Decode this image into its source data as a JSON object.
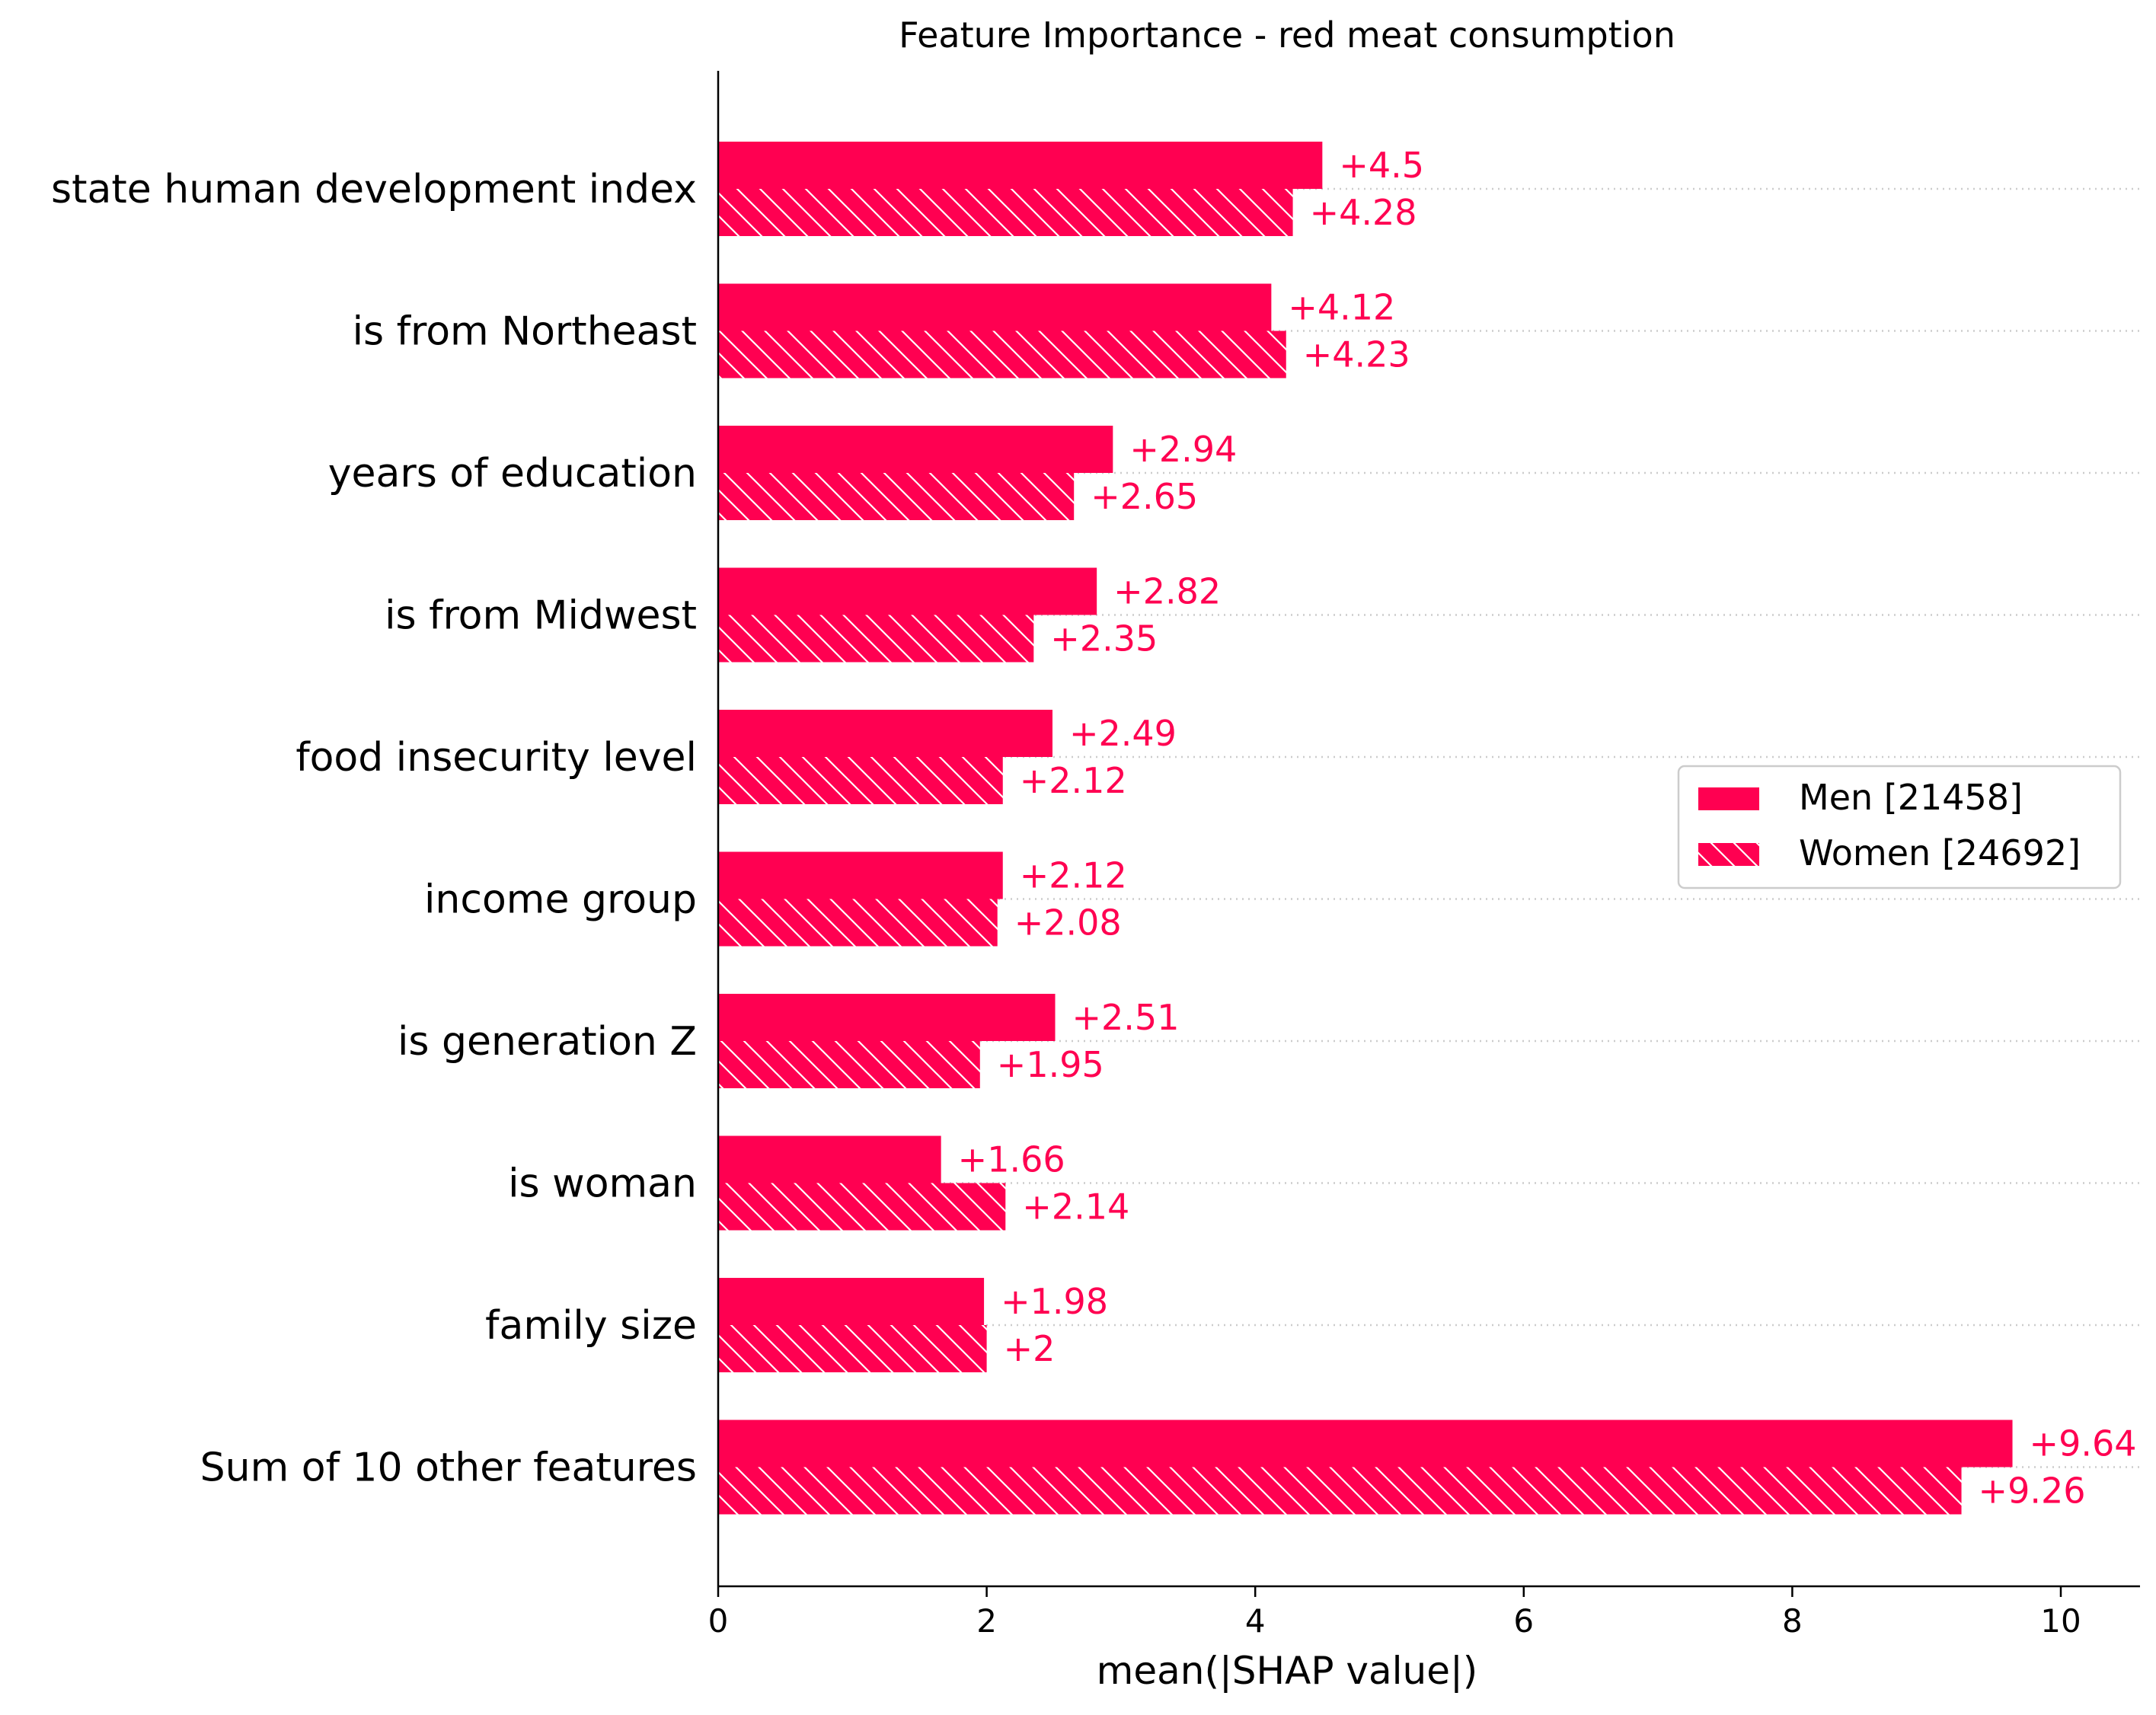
{
  "chart_data": {
    "type": "bar",
    "orientation": "horizontal",
    "title": "Feature Importance - red meat consumption",
    "xlabel": "mean(|SHAP value|)",
    "ylabel": "",
    "xlim": [
      0,
      10.6
    ],
    "xticks": [
      0,
      2,
      4,
      6,
      8,
      10
    ],
    "xtick_labels": [
      "0",
      "2",
      "4",
      "6",
      "8",
      "10"
    ],
    "grid": "dotted horizontal lines at each feature",
    "legend_position": "center-right",
    "categories": [
      "state human development index",
      "is from Northeast",
      "years of education",
      "is from Midwest",
      "food insecurity level",
      "income group",
      "is generation Z",
      "is woman",
      "family size",
      "Sum of 10 other features"
    ],
    "series": [
      {
        "name": "Men [21458]",
        "color": "#ff0051",
        "hatch": false,
        "values": [
          4.5,
          4.12,
          2.94,
          2.82,
          2.49,
          2.12,
          2.51,
          1.66,
          1.98,
          9.64
        ],
        "value_labels": [
          "+4.5",
          "+4.12",
          "+2.94",
          "+2.82",
          "+2.49",
          "+2.12",
          "+2.51",
          "+1.66",
          "+1.98",
          "+9.64"
        ]
      },
      {
        "name": "Women [24692]",
        "color": "#ff0051",
        "hatch": true,
        "values": [
          4.28,
          4.23,
          2.65,
          2.35,
          2.12,
          2.08,
          1.95,
          2.14,
          2.0,
          9.26
        ],
        "value_labels": [
          "+4.28",
          "+4.23",
          "+2.65",
          "+2.35",
          "+2.12",
          "+2.08",
          "+1.95",
          "+2.14",
          "+2",
          "+9.26"
        ]
      }
    ],
    "label_color": "#ff0051",
    "axis_color": "#000000",
    "grid_color": "#cccccc"
  }
}
